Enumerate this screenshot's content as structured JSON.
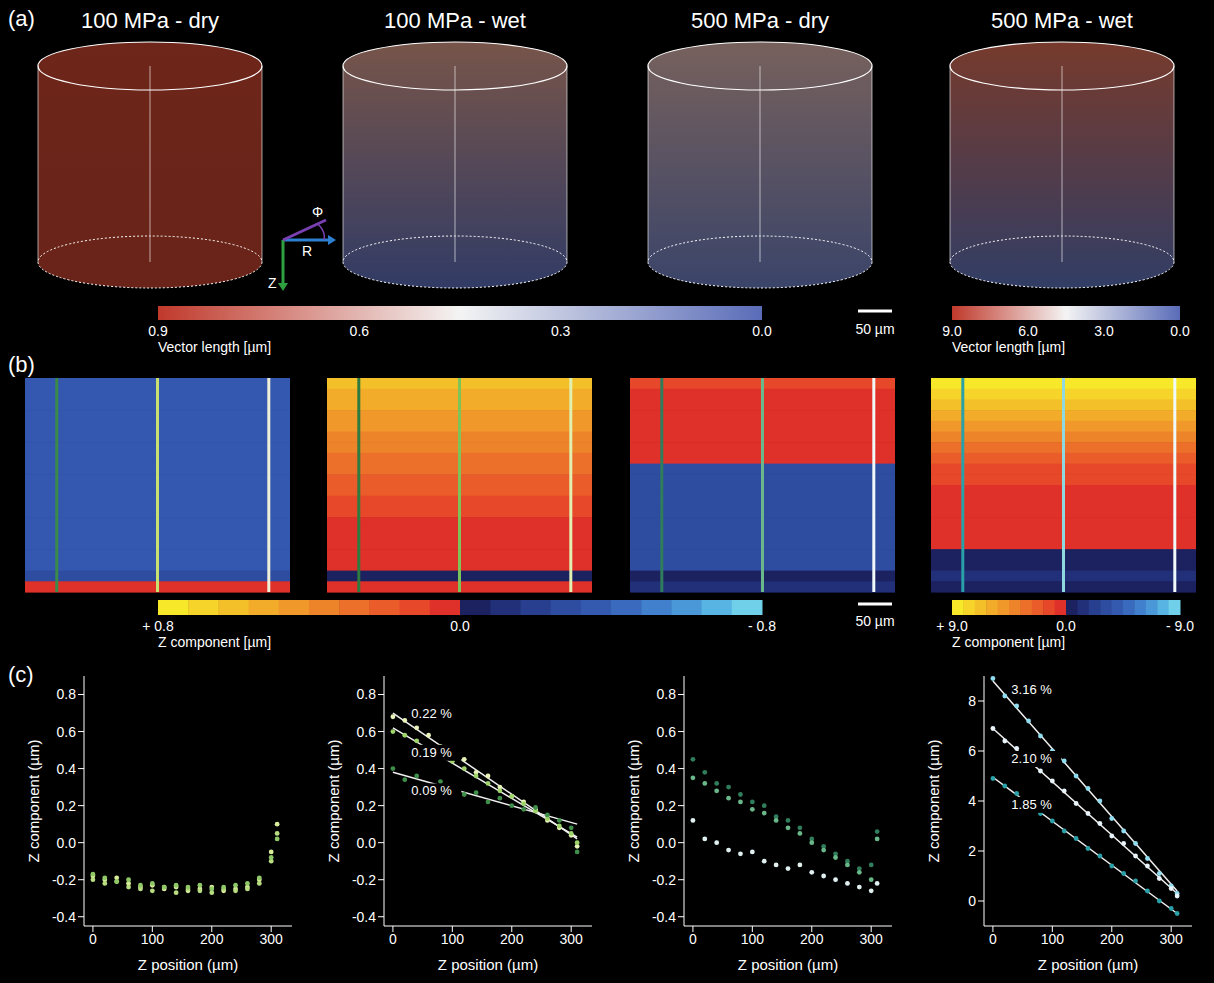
{
  "panel_a": {
    "letter": "(a)",
    "cylinders": [
      {
        "title": "100 MPa - dry",
        "colors": [
          "#c8452f",
          "#c0402c"
        ]
      },
      {
        "title": "100 MPa - wet",
        "colors": [
          "#d99a86",
          "#5a6cb8"
        ]
      },
      {
        "title": "500 MPa - dry",
        "colors": [
          "#d8b0a8",
          "#6a7cc0"
        ]
      },
      {
        "title": "500 MPa - wet",
        "colors": [
          "#d86a50",
          "#5a70b8"
        ]
      }
    ],
    "axes": {
      "phi": "Φ",
      "r": "R",
      "z": "Z"
    },
    "colorbars": [
      {
        "label": "Vector length [µm]",
        "range": [
          0.9,
          0.0
        ],
        "ticks": [
          0.9,
          0.6,
          0.3,
          {
            "value": 0,
            "label": "0.0"
          }
        ],
        "colors": [
          "#c0392b",
          "#f4f4f4",
          "#5a6cb8"
        ]
      },
      {
        "label": "Vector length [µm]",
        "range": [
          9.0,
          0.0
        ],
        "ticks": [
          {
            "value": 9,
            "label": "9.0"
          },
          {
            "value": 6,
            "label": "6.0"
          },
          {
            "value": 3,
            "label": "3.0"
          },
          {
            "value": 0,
            "label": "0.0"
          }
        ],
        "colors": [
          "#c0392b",
          "#f4f4f4",
          "#5a6cb8"
        ]
      }
    ],
    "scale_bar": "50 µm"
  },
  "panel_b": {
    "letter": "(b)",
    "heatmaps": [
      {
        "colors": [
          "#3458b0",
          "#3458b0",
          "#3458b0",
          "#3458b0",
          "#3458b0",
          "#3458b0",
          "#3458b0",
          "#3458b0",
          "#3458b0",
          "#3458b0",
          "#3458b0",
          "#3458b0",
          "#3458b0",
          "#3458b0",
          "#3458b0",
          "#3458b0",
          "#3458b0",
          "#3458b0",
          "#2e4ca0",
          "#e0302a"
        ],
        "line_colors": [
          "#3a8a4a",
          "#c8e070",
          "#f0f0d8"
        ]
      },
      {
        "colors": [
          "#f4c02a",
          "#f2ac2a",
          "#f2ac2a",
          "#f0982a",
          "#f0982a",
          "#ee842a",
          "#ee842a",
          "#ec702a",
          "#ec702a",
          "#ea5c2a",
          "#ea5c2a",
          "#e8482a",
          "#e8482a",
          "#e0302a",
          "#e0302a",
          "#e0302a",
          "#e0302a",
          "#e0302a",
          "#1c2260",
          "#e0302a"
        ],
        "line_colors": [
          "#2f7a3e",
          "#7cc35a",
          "#e0f0b0"
        ]
      },
      {
        "colors": [
          "#e8482a",
          "#e0302a",
          "#e0302a",
          "#e0302a",
          "#e0302a",
          "#e0302a",
          "#e0302a",
          "#e0302a",
          "#2e4ca0",
          "#2e4ca0",
          "#2e4ca0",
          "#2e4ca0",
          "#2e4ca0",
          "#2e4ca0",
          "#2e4ca0",
          "#2e4ca0",
          "#2e4ca0",
          "#2e4ca0",
          "#1c2260",
          "#22307a"
        ],
        "line_colors": [
          "#2f7d5a",
          "#6ab88a",
          "#f0f8f8"
        ]
      },
      {
        "colors": [
          "#f7e82a",
          "#f6d42a",
          "#f4c02a",
          "#f2ac2a",
          "#f0982a",
          "#ee842a",
          "#ec702a",
          "#ea5c2a",
          "#e8482a",
          "#e8482a",
          "#e0302a",
          "#e0302a",
          "#e0302a",
          "#e0302a",
          "#e0302a",
          "#e0302a",
          "#1c2260",
          "#1c2260",
          "#22307a",
          "#1c2260"
        ],
        "line_colors": [
          "#2aa0a8",
          "#90d8e0",
          "#f0fafa"
        ]
      }
    ],
    "colorbars": [
      {
        "label": "Z component [µm]",
        "range": [
          0.8,
          -0.8
        ],
        "ticks": [
          {
            "value": 0.8,
            "label": "+ 0.8"
          },
          {
            "value": 0,
            "label": "0.0"
          },
          {
            "value": -0.8,
            "label": "- 0.8"
          }
        ],
        "colors": [
          "#f7e82a",
          "#f6d42a",
          "#f4c02a",
          "#f2ac2a",
          "#f0982a",
          "#ee842a",
          "#ec702a",
          "#ea5c2a",
          "#e8482a",
          "#e0302a",
          "#1c2260",
          "#22307a",
          "#283e8e",
          "#2e4ca0",
          "#345ab0",
          "#3a6abe",
          "#4080cc",
          "#4a98d8",
          "#58b4e2",
          "#70d0ea"
        ]
      },
      {
        "label": "Z component [µm]",
        "range": [
          9.0,
          -9.0
        ],
        "ticks": [
          {
            "value": 9,
            "label": "+ 9.0"
          },
          {
            "value": 0,
            "label": "0.0"
          },
          {
            "value": -9,
            "label": "- 9.0"
          }
        ],
        "colors": [
          "#f7e82a",
          "#f6d42a",
          "#f4c02a",
          "#f2ac2a",
          "#f0982a",
          "#ee842a",
          "#ec702a",
          "#ea5c2a",
          "#e8482a",
          "#e0302a",
          "#1c2260",
          "#22307a",
          "#283e8e",
          "#2e4ca0",
          "#345ab0",
          "#3a6abe",
          "#4080cc",
          "#4a98d8",
          "#58b4e2",
          "#70d0ea"
        ]
      }
    ],
    "scale_bar": "50 µm"
  },
  "panel_c": {
    "letter": "(c)"
  },
  "chart_data": [
    {
      "type": "scatter",
      "x_label": "Z position (µm)",
      "y_label": "Z component (µm)",
      "x": [
        0,
        20,
        40,
        60,
        80,
        100,
        120,
        140,
        160,
        180,
        200,
        220,
        240,
        260,
        280,
        300,
        310
      ],
      "series": [
        {
          "color": "#d8ec9a",
          "values": [
            -0.18,
            -0.2,
            -0.19,
            -0.22,
            -0.24,
            -0.23,
            -0.25,
            -0.24,
            -0.26,
            -0.25,
            -0.24,
            -0.26,
            -0.25,
            -0.24,
            -0.2,
            -0.05,
            0.1
          ]
        },
        {
          "color": "#b8dc80",
          "values": [
            -0.2,
            -0.22,
            -0.21,
            -0.24,
            -0.25,
            -0.26,
            -0.24,
            -0.27,
            -0.25,
            -0.26,
            -0.27,
            -0.25,
            -0.26,
            -0.25,
            -0.22,
            -0.1,
            0.05
          ]
        },
        {
          "color": "#8fc866",
          "values": [
            -0.17,
            -0.19,
            -0.21,
            -0.2,
            -0.23,
            -0.22,
            -0.24,
            -0.23,
            -0.24,
            -0.23,
            -0.25,
            -0.24,
            -0.23,
            -0.22,
            -0.19,
            -0.08,
            0.02
          ]
        }
      ],
      "fits": [],
      "xlim": [
        -15,
        335
      ],
      "xticks": [
        0,
        100,
        200,
        300
      ],
      "ylim": [
        -0.45,
        0.9
      ],
      "yticks": [
        -0.4,
        -0.2,
        {
          "value": 0,
          "label": "0.0"
        },
        0.2,
        0.4,
        0.6,
        0.8
      ]
    },
    {
      "type": "scatter",
      "x_label": "Z position (µm)",
      "y_label": "Z component (µm)",
      "x": [
        0,
        20,
        40,
        60,
        80,
        100,
        120,
        140,
        160,
        180,
        200,
        220,
        240,
        260,
        280,
        300,
        310
      ],
      "series": [
        {
          "color": "#e6f2b8",
          "values": [
            0.68,
            0.66,
            0.62,
            0.58,
            0.52,
            0.47,
            0.45,
            0.38,
            0.36,
            0.3,
            0.25,
            0.22,
            0.18,
            0.12,
            0.08,
            0.04,
            -0.02
          ]
        },
        {
          "color": "#9ed36a",
          "values": [
            0.6,
            0.58,
            0.55,
            0.51,
            0.47,
            0.44,
            0.4,
            0.36,
            0.32,
            0.28,
            0.25,
            0.21,
            0.17,
            0.13,
            0.09,
            0.05,
            0.0
          ]
        },
        {
          "color": "#3f8f4a",
          "values": [
            0.4,
            0.34,
            0.36,
            0.3,
            0.33,
            0.28,
            0.26,
            0.27,
            0.22,
            0.24,
            0.2,
            0.18,
            0.19,
            0.15,
            0.12,
            0.08,
            -0.05
          ]
        }
      ],
      "fits": [
        {
          "label": "0.22 %",
          "color": "#f0f0f0",
          "x": [
            0,
            310
          ],
          "y": [
            0.7,
            0.02
          ]
        },
        {
          "label": "0.19 %",
          "color": "#f0f0f0",
          "x": [
            0,
            310
          ],
          "y": [
            0.62,
            0.03
          ]
        },
        {
          "label": "0.09 %",
          "color": "#f0f0f0",
          "x": [
            0,
            310
          ],
          "y": [
            0.38,
            0.1
          ]
        }
      ],
      "xlim": [
        -15,
        335
      ],
      "xticks": [
        0,
        100,
        200,
        300
      ],
      "ylim": [
        -0.45,
        0.9
      ],
      "yticks": [
        -0.4,
        -0.2,
        {
          "value": 0,
          "label": "0.0"
        },
        0.2,
        0.4,
        0.6,
        0.8
      ]
    },
    {
      "type": "scatter",
      "x_label": "Z position (µm)",
      "y_label": "Z component (µm)",
      "x": [
        0,
        20,
        40,
        60,
        80,
        100,
        120,
        140,
        160,
        180,
        200,
        220,
        240,
        260,
        280,
        300,
        310
      ],
      "series": [
        {
          "color": "#2f7d5a",
          "values": [
            0.45,
            0.38,
            0.32,
            0.3,
            0.26,
            0.22,
            0.2,
            0.14,
            0.12,
            0.08,
            0.02,
            -0.02,
            -0.06,
            -0.1,
            -0.14,
            -0.12,
            0.06
          ]
        },
        {
          "color": "#6ab88a",
          "values": [
            0.35,
            0.32,
            0.28,
            0.24,
            0.22,
            0.18,
            0.16,
            0.12,
            0.08,
            0.05,
            0.0,
            -0.04,
            -0.08,
            -0.12,
            -0.16,
            -0.2,
            0.02
          ]
        },
        {
          "color": "#e0f0f0",
          "values": [
            0.12,
            0.02,
            0.0,
            -0.04,
            -0.06,
            -0.05,
            -0.1,
            -0.12,
            -0.14,
            -0.12,
            -0.16,
            -0.18,
            -0.2,
            -0.22,
            -0.24,
            -0.26,
            -0.22
          ]
        }
      ],
      "fits": [],
      "xlim": [
        -15,
        335
      ],
      "xticks": [
        0,
        100,
        200,
        300
      ],
      "ylim": [
        -0.45,
        0.9
      ],
      "yticks": [
        -0.4,
        -0.2,
        {
          "value": 0,
          "label": "0.0"
        },
        0.2,
        0.4,
        0.6,
        0.8
      ]
    },
    {
      "type": "scatter",
      "x_label": "Z position (µm)",
      "y_label": "Z component (µm)",
      "x": [
        0,
        20,
        40,
        60,
        80,
        100,
        120,
        140,
        160,
        180,
        200,
        220,
        240,
        260,
        280,
        300,
        310
      ],
      "series": [
        {
          "color": "#8fdcee",
          "values": [
            8.9,
            8.2,
            7.8,
            7.2,
            6.6,
            6.0,
            5.6,
            5.0,
            4.5,
            4.0,
            3.3,
            2.8,
            2.3,
            1.7,
            1.1,
            0.6,
            0.3
          ]
        },
        {
          "color": "#e8f4fa",
          "values": [
            6.9,
            6.4,
            6.1,
            5.6,
            5.2,
            4.8,
            4.4,
            3.9,
            3.5,
            3.1,
            2.6,
            2.3,
            1.8,
            1.4,
            0.9,
            0.5,
            0.2
          ]
        },
        {
          "color": "#2aa0a8",
          "values": [
            4.9,
            4.6,
            4.3,
            3.9,
            3.5,
            3.2,
            2.8,
            2.5,
            2.1,
            1.8,
            1.4,
            1.1,
            0.8,
            0.4,
            0.0,
            -0.3,
            -0.5
          ]
        }
      ],
      "fits": [
        {
          "label": "3.16 %",
          "color": "#f0f0f0",
          "x": [
            0,
            310
          ],
          "y": [
            8.8,
            0.4
          ]
        },
        {
          "label": "2.10 %",
          "color": "#f0f0f0",
          "x": [
            0,
            310
          ],
          "y": [
            6.9,
            0.3
          ]
        },
        {
          "label": "1.85 %",
          "color": "#f0f0f0",
          "x": [
            0,
            310
          ],
          "y": [
            4.95,
            -0.5
          ]
        }
      ],
      "xlim": [
        -15,
        335
      ],
      "xticks": [
        0,
        100,
        200,
        300
      ],
      "ylim": [
        -1,
        9
      ],
      "yticks": [
        0,
        2,
        4,
        6,
        8
      ]
    }
  ]
}
